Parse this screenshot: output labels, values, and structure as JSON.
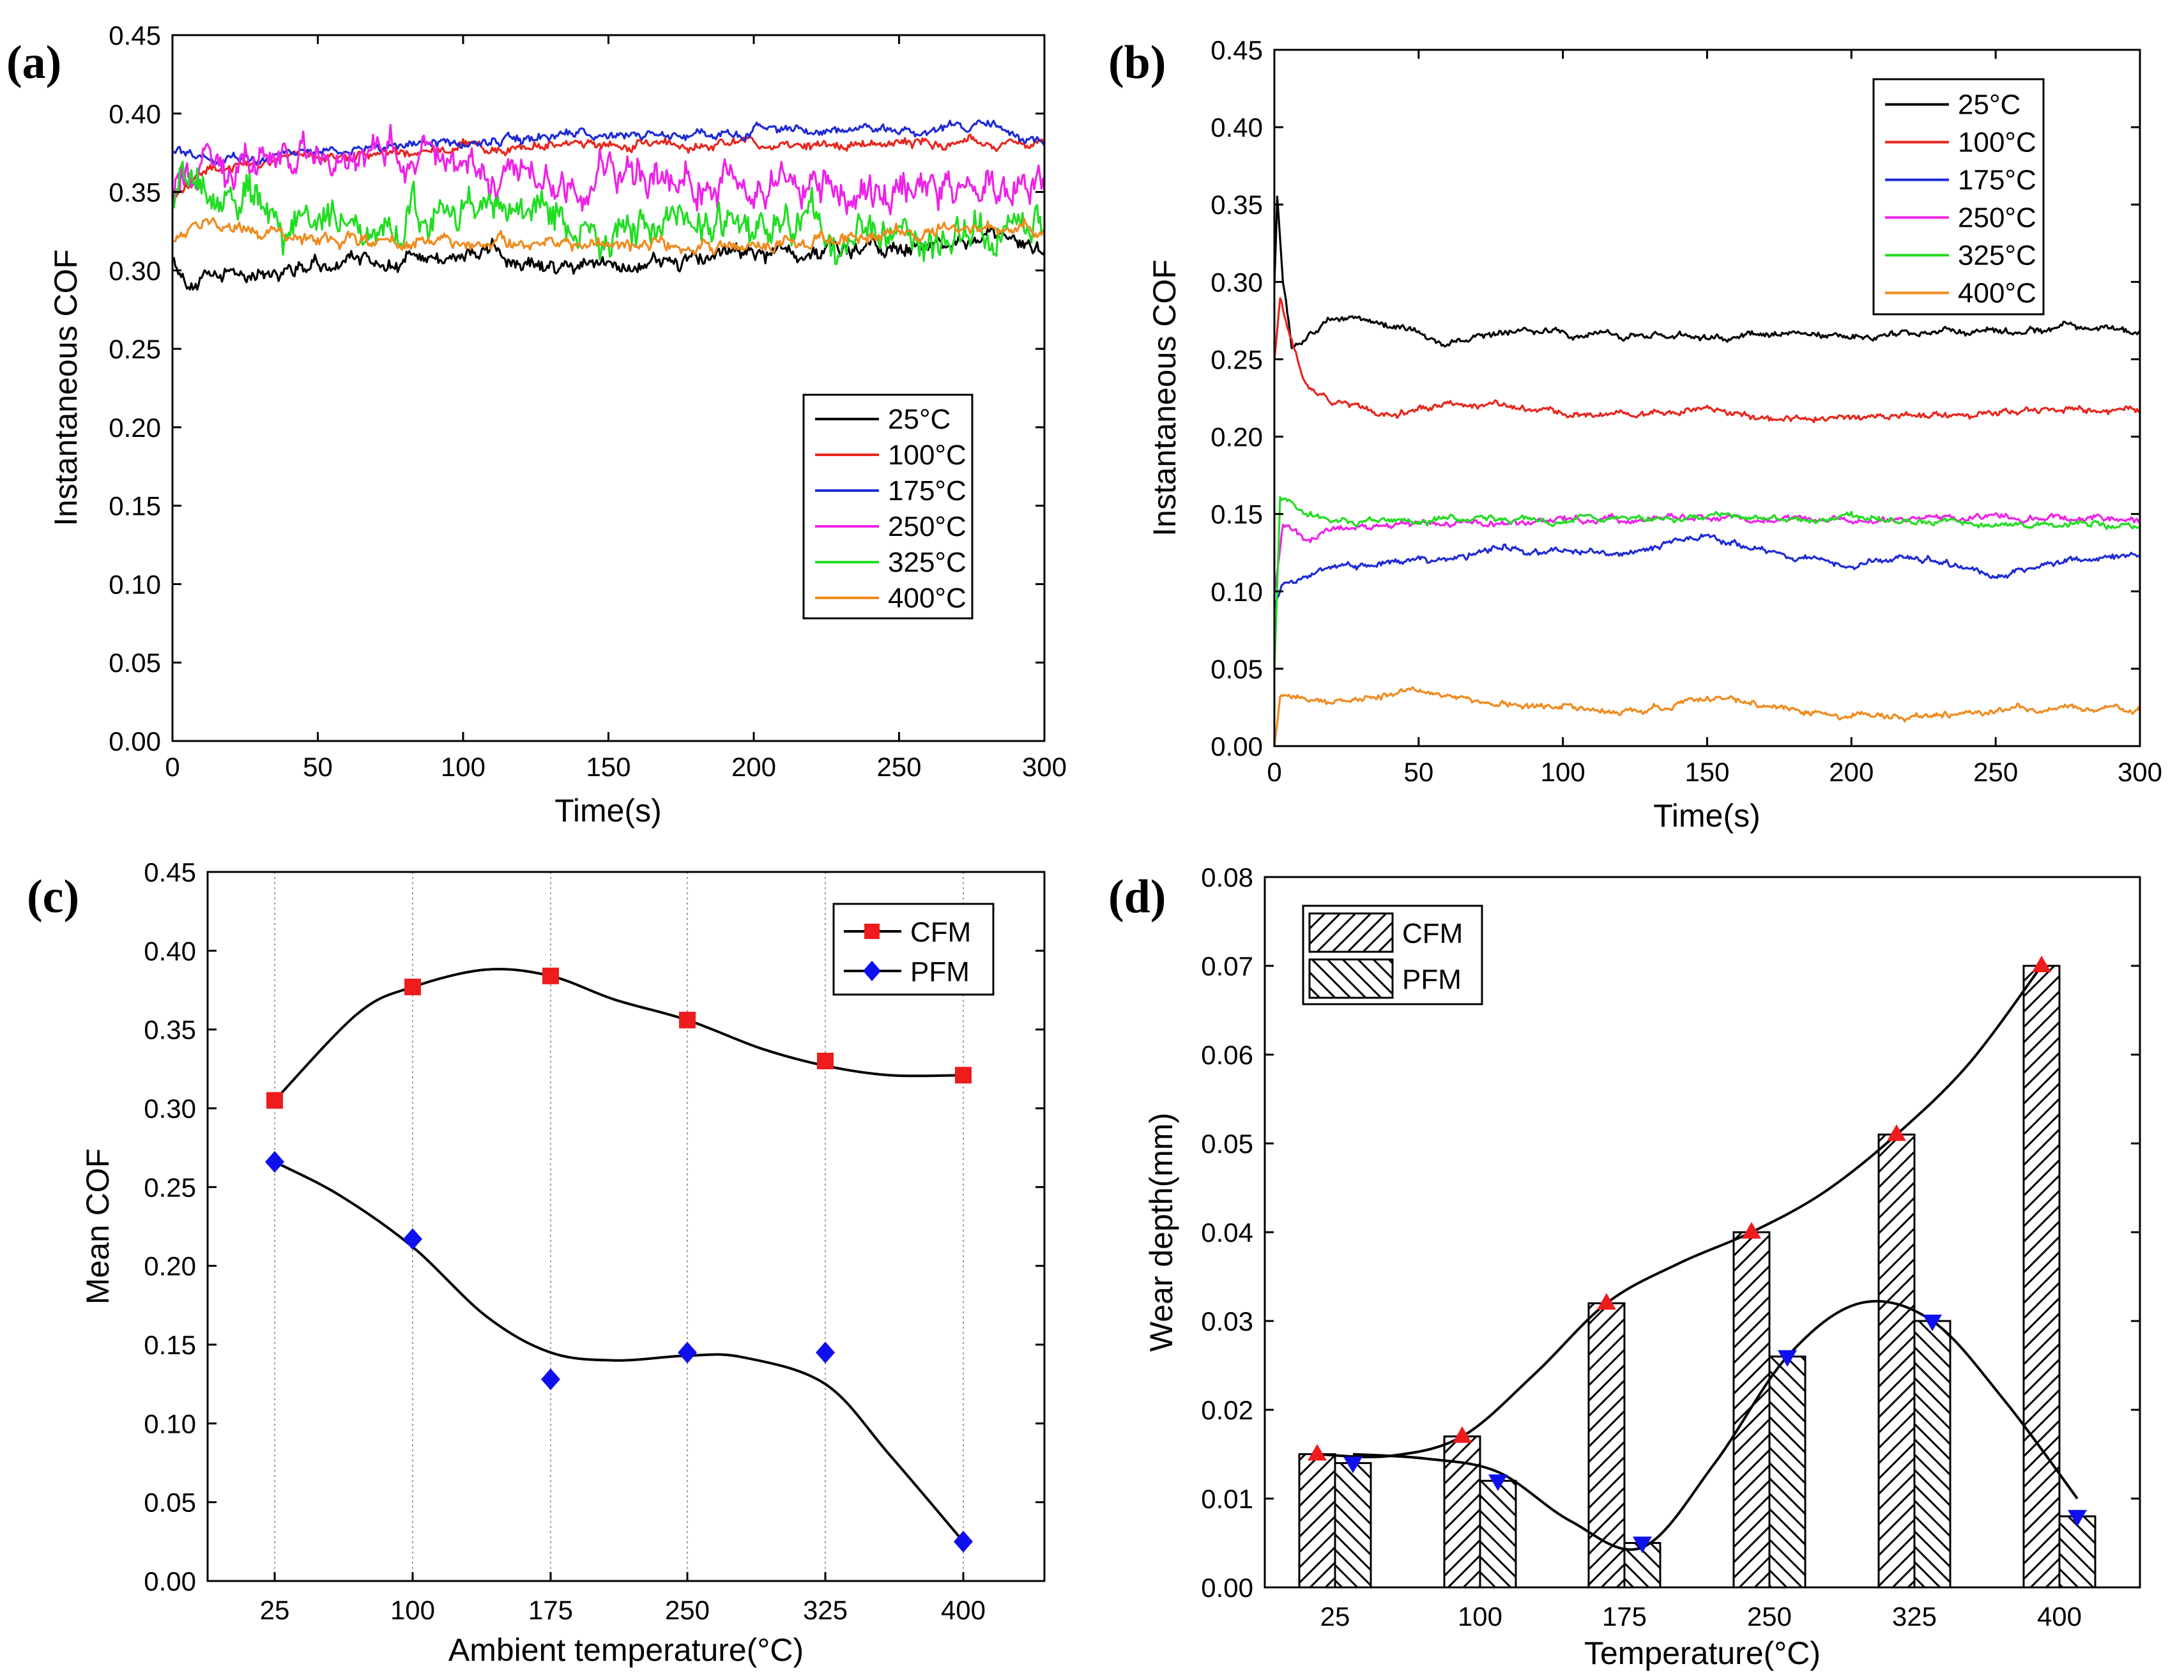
{
  "colors": {
    "25C": "#000000",
    "100C": "#e8261d",
    "175C": "#1f2bd4",
    "250C": "#ee22e8",
    "325C": "#22dd22",
    "400C": "#f08a1d",
    "cfm_marker": "#ee1c1c",
    "pfm_marker": "#1010ee",
    "axis": "#000000",
    "grid": "#9a9a9a"
  },
  "chart_data": [
    {
      "panel": "(a)",
      "type": "line",
      "title": "",
      "xlabel": "Time(s)",
      "ylabel": "Instantaneous COF",
      "xlim": [
        0,
        300
      ],
      "ylim": [
        0,
        0.45
      ],
      "xticks": [
        "0",
        "50",
        "100",
        "150",
        "200",
        "250",
        "300"
      ],
      "yticks": [
        "0.00",
        "0.05",
        "0.10",
        "0.15",
        "0.20",
        "0.25",
        "0.30",
        "0.35",
        "0.40",
        "0.45"
      ],
      "legend_position": "center-right",
      "series": [
        {
          "name": "25°C",
          "color_key": "25C",
          "noise": 0.005,
          "points": [
            [
              0,
              0.31
            ],
            [
              5,
              0.295
            ],
            [
              10,
              0.292
            ],
            [
              20,
              0.297
            ],
            [
              40,
              0.303
            ],
            [
              60,
              0.305
            ],
            [
              80,
              0.306
            ],
            [
              100,
              0.309
            ],
            [
              110,
              0.312
            ],
            [
              120,
              0.302
            ],
            [
              130,
              0.299
            ],
            [
              150,
              0.304
            ],
            [
              175,
              0.307
            ],
            [
              200,
              0.311
            ],
            [
              225,
              0.314
            ],
            [
              250,
              0.316
            ],
            [
              275,
              0.318
            ],
            [
              300,
              0.314
            ]
          ]
        },
        {
          "name": "100°C",
          "color_key": "100C",
          "noise": 0.003,
          "points": [
            [
              0,
              0.345
            ],
            [
              10,
              0.362
            ],
            [
              30,
              0.37
            ],
            [
              60,
              0.374
            ],
            [
              100,
              0.378
            ],
            [
              130,
              0.38
            ],
            [
              160,
              0.381
            ],
            [
              200,
              0.38
            ],
            [
              250,
              0.381
            ],
            [
              300,
              0.38
            ]
          ]
        },
        {
          "name": "175°C",
          "color_key": "175C",
          "noise": 0.003,
          "points": [
            [
              0,
              0.377
            ],
            [
              10,
              0.372
            ],
            [
              30,
              0.372
            ],
            [
              60,
              0.377
            ],
            [
              100,
              0.382
            ],
            [
              150,
              0.386
            ],
            [
              200,
              0.389
            ],
            [
              250,
              0.39
            ],
            [
              280,
              0.391
            ],
            [
              300,
              0.384
            ]
          ]
        },
        {
          "name": "250°C",
          "color_key": "250C",
          "noise": 0.012,
          "points": [
            [
              0,
              0.355
            ],
            [
              20,
              0.365
            ],
            [
              60,
              0.37
            ],
            [
              100,
              0.365
            ],
            [
              150,
              0.36
            ],
            [
              200,
              0.356
            ],
            [
              250,
              0.355
            ],
            [
              300,
              0.352
            ]
          ]
        },
        {
          "name": "325°C",
          "color_key": "325C",
          "noise": 0.012,
          "points": [
            [
              0,
              0.35
            ],
            [
              20,
              0.34
            ],
            [
              40,
              0.33
            ],
            [
              80,
              0.33
            ],
            [
              120,
              0.33
            ],
            [
              160,
              0.325
            ],
            [
              200,
              0.325
            ],
            [
              250,
              0.325
            ],
            [
              300,
              0.322
            ]
          ]
        },
        {
          "name": "400°C",
          "color_key": "400C",
          "noise": 0.004,
          "points": [
            [
              0,
              0.32
            ],
            [
              10,
              0.33
            ],
            [
              30,
              0.32
            ],
            [
              60,
              0.318
            ],
            [
              100,
              0.318
            ],
            [
              150,
              0.316
            ],
            [
              200,
              0.318
            ],
            [
              250,
              0.323
            ],
            [
              300,
              0.327
            ]
          ]
        }
      ]
    },
    {
      "panel": "(b)",
      "type": "line",
      "title": "",
      "xlabel": "Time(s)",
      "ylabel": "Instantaneous COF",
      "xlim": [
        0,
        300
      ],
      "ylim": [
        0,
        0.45
      ],
      "xticks": [
        "0",
        "50",
        "100",
        "150",
        "200",
        "250",
        "300"
      ],
      "yticks": [
        "0.00",
        "0.05",
        "0.10",
        "0.15",
        "0.20",
        "0.25",
        "0.30",
        "0.35",
        "0.40",
        "0.45"
      ],
      "legend_position": "top-right",
      "series": [
        {
          "name": "25°C",
          "color_key": "25C",
          "noise": 0.002,
          "points": [
            [
              0,
              0.3
            ],
            [
              1,
              0.355
            ],
            [
              3,
              0.3
            ],
            [
              6,
              0.26
            ],
            [
              10,
              0.262
            ],
            [
              20,
              0.278
            ],
            [
              40,
              0.272
            ],
            [
              60,
              0.26
            ],
            [
              80,
              0.268
            ],
            [
              100,
              0.267
            ],
            [
              125,
              0.266
            ],
            [
              150,
              0.264
            ],
            [
              175,
              0.268
            ],
            [
              200,
              0.264
            ],
            [
              225,
              0.268
            ],
            [
              250,
              0.268
            ],
            [
              275,
              0.27
            ],
            [
              300,
              0.268
            ]
          ]
        },
        {
          "name": "100°C",
          "color_key": "100C",
          "noise": 0.002,
          "points": [
            [
              0,
              0.25
            ],
            [
              2,
              0.29
            ],
            [
              5,
              0.27
            ],
            [
              10,
              0.238
            ],
            [
              20,
              0.222
            ],
            [
              40,
              0.215
            ],
            [
              60,
              0.22
            ],
            [
              80,
              0.22
            ],
            [
              100,
              0.215
            ],
            [
              125,
              0.213
            ],
            [
              150,
              0.218
            ],
            [
              175,
              0.21
            ],
            [
              200,
              0.213
            ],
            [
              225,
              0.214
            ],
            [
              250,
              0.215
            ],
            [
              275,
              0.218
            ],
            [
              300,
              0.217
            ]
          ]
        },
        {
          "name": "175°C",
          "color_key": "175C",
          "noise": 0.002,
          "points": [
            [
              0,
              0.09
            ],
            [
              3,
              0.105
            ],
            [
              20,
              0.115
            ],
            [
              40,
              0.118
            ],
            [
              60,
              0.12
            ],
            [
              80,
              0.128
            ],
            [
              100,
              0.126
            ],
            [
              120,
              0.124
            ],
            [
              150,
              0.135
            ],
            [
              175,
              0.124
            ],
            [
              200,
              0.118
            ],
            [
              225,
              0.122
            ],
            [
              250,
              0.11
            ],
            [
              275,
              0.12
            ],
            [
              300,
              0.123
            ]
          ]
        },
        {
          "name": "250°C",
          "color_key": "250C",
          "noise": 0.002,
          "points": [
            [
              0,
              0.1
            ],
            [
              3,
              0.145
            ],
            [
              10,
              0.135
            ],
            [
              20,
              0.14
            ],
            [
              50,
              0.145
            ],
            [
              100,
              0.145
            ],
            [
              150,
              0.148
            ],
            [
              200,
              0.146
            ],
            [
              250,
              0.148
            ],
            [
              300,
              0.147
            ]
          ]
        },
        {
          "name": "325°C",
          "color_key": "325C",
          "noise": 0.002,
          "points": [
            [
              0,
              0.05
            ],
            [
              2,
              0.16
            ],
            [
              10,
              0.15
            ],
            [
              30,
              0.145
            ],
            [
              60,
              0.147
            ],
            [
              100,
              0.146
            ],
            [
              150,
              0.148
            ],
            [
              200,
              0.147
            ],
            [
              250,
              0.143
            ],
            [
              300,
              0.143
            ]
          ]
        },
        {
          "name": "400°C",
          "color_key": "400C",
          "noise": 0.002,
          "points": [
            [
              0,
              0.0
            ],
            [
              2,
              0.032
            ],
            [
              20,
              0.028
            ],
            [
              50,
              0.035
            ],
            [
              75,
              0.028
            ],
            [
              100,
              0.025
            ],
            [
              125,
              0.022
            ],
            [
              150,
              0.032
            ],
            [
              175,
              0.025
            ],
            [
              200,
              0.02
            ],
            [
              225,
              0.02
            ],
            [
              250,
              0.022
            ],
            [
              275,
              0.026
            ],
            [
              300,
              0.022
            ]
          ]
        }
      ]
    },
    {
      "panel": "(c)",
      "type": "scatter",
      "title": "",
      "xlabel": "Ambient temperature(°C)",
      "ylabel": "Mean COF",
      "categories": [
        "25",
        "100",
        "175",
        "250",
        "325",
        "400"
      ],
      "ylim": [
        0,
        0.45
      ],
      "yticks": [
        "0.00",
        "0.05",
        "0.10",
        "0.15",
        "0.20",
        "0.25",
        "0.30",
        "0.35",
        "0.40",
        "0.45"
      ],
      "grid": "vertical-dotted",
      "legend_position": "top-right",
      "series": [
        {
          "name": "CFM",
          "marker": "square",
          "color_key": "cfm_marker",
          "values": [
            0.305,
            0.377,
            0.384,
            0.356,
            0.33,
            0.321
          ]
        },
        {
          "name": "PFM",
          "marker": "diamond",
          "color_key": "pfm_marker",
          "values": [
            0.266,
            0.217,
            0.128,
            0.145,
            0.145,
            0.025
          ]
        }
      ],
      "fit_curves": [
        {
          "name": "CFM",
          "points": [
            [
              25,
              0.305
            ],
            [
              70,
              0.36
            ],
            [
              100,
              0.377
            ],
            [
              140,
              0.388
            ],
            [
              175,
              0.384
            ],
            [
              210,
              0.369
            ],
            [
              250,
              0.356
            ],
            [
              290,
              0.338
            ],
            [
              325,
              0.327
            ],
            [
              360,
              0.321
            ],
            [
              400,
              0.321
            ]
          ]
        },
        {
          "name": "PFM",
          "points": [
            [
              25,
              0.266
            ],
            [
              60,
              0.245
            ],
            [
              100,
              0.212
            ],
            [
              140,
              0.168
            ],
            [
              175,
              0.145
            ],
            [
              210,
              0.14
            ],
            [
              250,
              0.143
            ],
            [
              280,
              0.142
            ],
            [
              325,
              0.125
            ],
            [
              360,
              0.08
            ],
            [
              400,
              0.025
            ]
          ]
        }
      ]
    },
    {
      "panel": "(d)",
      "type": "bar",
      "title": "",
      "xlabel": "Temperature(°C)",
      "ylabel": "Wear depth(mm)",
      "categories": [
        "25",
        "100",
        "175",
        "250",
        "325",
        "400"
      ],
      "ylim": [
        0,
        0.08
      ],
      "yticks": [
        "0.00",
        "0.01",
        "0.02",
        "0.03",
        "0.04",
        "0.05",
        "0.06",
        "0.07",
        "0.08"
      ],
      "legend_position": "top-left",
      "series": [
        {
          "name": "CFM",
          "pattern": "forward-hatch",
          "marker": "triangle-up",
          "color_key": "cfm_marker",
          "values": [
            0.015,
            0.017,
            0.032,
            0.04,
            0.051,
            0.07
          ]
        },
        {
          "name": "PFM",
          "pattern": "back-hatch",
          "marker": "triangle-down",
          "color_key": "pfm_marker",
          "values": [
            0.014,
            0.012,
            0.005,
            0.026,
            0.03,
            0.008
          ]
        }
      ],
      "fit_curves": [
        {
          "name": "CFM",
          "points": [
            [
              0,
              0.015
            ],
            [
              0.5,
              0.0148
            ],
            [
              1,
              0.017
            ],
            [
              1.5,
              0.024
            ],
            [
              2,
              0.032
            ],
            [
              2.5,
              0.0365
            ],
            [
              3,
              0.04
            ],
            [
              3.5,
              0.0445
            ],
            [
              4,
              0.051
            ],
            [
              4.5,
              0.059
            ],
            [
              5,
              0.07
            ]
          ]
        },
        {
          "name": "PFM",
          "points": [
            [
              0,
              0.015
            ],
            [
              0.5,
              0.0145
            ],
            [
              1,
              0.013
            ],
            [
              1.5,
              0.0075
            ],
            [
              2,
              0.0045
            ],
            [
              2.5,
              0.014
            ],
            [
              3,
              0.026
            ],
            [
              3.5,
              0.032
            ],
            [
              4,
              0.03
            ],
            [
              4.5,
              0.021
            ],
            [
              5,
              0.01
            ]
          ]
        }
      ]
    }
  ]
}
